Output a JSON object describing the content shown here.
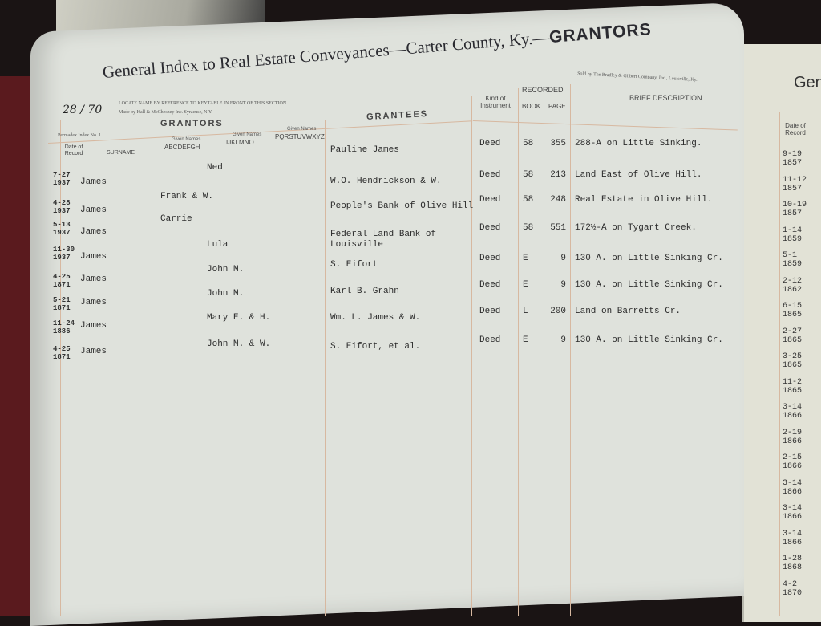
{
  "header": {
    "title": "General Index to Real Estate Conveyances—Carter County, Ky.—",
    "title_strong": "GRANTORS",
    "handwritten_number": "28 / 70",
    "locate_note": "LOCATE NAME BY REFERENCE TO KEYTABLE IN FRONT OF THIS SECTION.",
    "maker_note": "Made by Hall & McChesney Inc. Syracuse, N.Y.",
    "form_note": "Permadex Index No. 1.",
    "seller_note": "Sold by The Bradley & Gilbert Company, Inc., Louisville, Ky."
  },
  "columns": {
    "date": "Date of Record",
    "grantors": "GRANTORS",
    "surname": "SURNAME",
    "given_label": "Given Names",
    "given1": "ABCDEFGH",
    "given2": "IJKLMNO",
    "given3": "PQRSTUVWXYZ",
    "grantees": "GRANTEES",
    "kind": "Kind of Instrument",
    "recorded": "RECORDED",
    "book": "BOOK",
    "page": "PAGE",
    "description": "BRIEF DESCRIPTION"
  },
  "rows": [
    {
      "date": "7-27 1937",
      "surname": "James",
      "given": "Ned",
      "gcol": 2,
      "grantee": "Pauline James",
      "kind": "Deed",
      "book": "58",
      "page": "355",
      "desc": "288-A on Little Sinking."
    },
    {
      "date": "4-28 1937",
      "surname": "James",
      "given": "Frank & W.",
      "gcol": 1,
      "grantee": "W.O. Hendrickson & W.",
      "kind": "Deed",
      "book": "58",
      "page": "213",
      "desc": "Land East of Olive Hill."
    },
    {
      "date": "5-13 1937",
      "surname": "James",
      "given": "Carrie",
      "gcol": 1,
      "grantee": "People's Bank of Olive Hill",
      "kind": "Deed",
      "book": "58",
      "page": "248",
      "desc": "Real Estate in Olive Hill."
    },
    {
      "date": "11-30 1937",
      "surname": "James",
      "given": "Lula",
      "gcol": 2,
      "grantee": "Federal Land Bank of Louisville",
      "kind": "Deed",
      "book": "58",
      "page": "551",
      "desc": "172½-A on Tygart Creek."
    },
    {
      "date": "4-25 1871",
      "surname": "James",
      "given": "John M.",
      "gcol": 2,
      "grantee": "S. Eifort",
      "kind": "Deed",
      "book": "E",
      "page": "9",
      "desc": "130 A. on Little Sinking Cr."
    },
    {
      "date": "5-21 1871",
      "surname": "James",
      "given": "John M.",
      "gcol": 2,
      "grantee": "Karl B. Grahn",
      "kind": "Deed",
      "book": "E",
      "page": "9",
      "desc": "130 A. on Little Sinking Cr."
    },
    {
      "date": "11-24 1886",
      "surname": "James",
      "given": "Mary E. & H.",
      "gcol": 2,
      "grantee": "Wm. L. James & W.",
      "kind": "Deed",
      "book": "L",
      "page": "200",
      "desc": "Land on Barretts Cr."
    },
    {
      "date": "4-25 1871",
      "surname": "James",
      "given": "John M. & W.",
      "gcol": 2,
      "grantee": "S. Eifort, et al.",
      "kind": "Deed",
      "book": "E",
      "page": "9",
      "desc": "130 A. on Little Sinking Cr."
    }
  ],
  "right_page": {
    "title_fragment": "Gen",
    "date_header": "Date of Record",
    "dates": [
      "9-19 1857",
      "11-12 1857",
      "10-19 1857",
      "1-14 1859",
      "5-1 1859",
      "2-12 1862",
      "6-15 1865",
      "2-27 1865",
      "3-25 1865",
      "11-2 1865",
      "3-14 1866",
      "2-19 1866",
      "2-15 1866",
      "3-14 1866",
      "3-14 1866",
      "3-14 1866",
      "1-28 1868",
      "4-2 1870"
    ]
  }
}
